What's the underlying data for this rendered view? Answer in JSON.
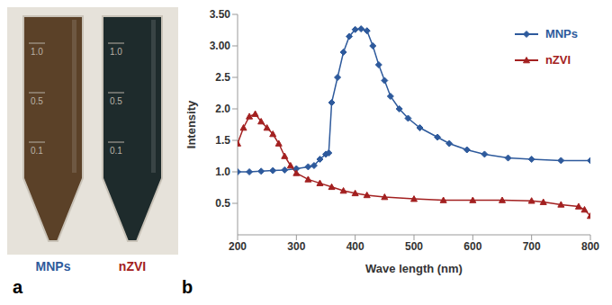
{
  "photo": {
    "panel_label": "a",
    "tubes": [
      {
        "name": "MNPs",
        "color": "#2e5a9c",
        "liquid": "#5b4128",
        "scale_marks": [
          "1.0",
          "0.5",
          "0.1"
        ]
      },
      {
        "name": "nZVI",
        "color": "#a32020",
        "liquid": "#1e2b2c",
        "scale_marks": [
          "1.0",
          "0.5",
          "0.1"
        ]
      }
    ]
  },
  "chart_data": {
    "type": "line",
    "panel_label": "b",
    "x_label": "Wave length (nm)",
    "y_label": "Intensity",
    "xlim": [
      200,
      800
    ],
    "xticks": [
      200,
      300,
      400,
      500,
      600,
      700,
      800
    ],
    "ylim": [
      0,
      3.5
    ],
    "yticks": [
      0.5,
      {
        "value": 1,
        "label": "1.0"
      },
      1.5,
      {
        "value": 2,
        "label": "2.0"
      },
      2.5,
      {
        "value": 3,
        "label": "3.00"
      },
      {
        "value": 3.5,
        "label": "3.50"
      }
    ],
    "grid": false,
    "legend": "top right",
    "series": [
      {
        "name": "MNPs",
        "color": "#2e5a9c",
        "marker": "diamond",
        "x": [
          200,
          220,
          240,
          260,
          280,
          300,
          320,
          330,
          340,
          350,
          355,
          360,
          370,
          380,
          390,
          400,
          410,
          420,
          430,
          440,
          450,
          460,
          475,
          490,
          510,
          540,
          560,
          590,
          620,
          660,
          700,
          750,
          800
        ],
        "values": [
          1.0,
          1.0,
          1.01,
          1.02,
          1.03,
          1.05,
          1.08,
          1.1,
          1.2,
          1.28,
          1.3,
          2.1,
          2.5,
          2.9,
          3.15,
          3.26,
          3.27,
          3.24,
          3.0,
          2.7,
          2.45,
          2.2,
          2.0,
          1.85,
          1.7,
          1.55,
          1.45,
          1.35,
          1.28,
          1.22,
          1.2,
          1.18,
          1.18
        ]
      },
      {
        "name": "nZVI",
        "color": "#a32020",
        "marker": "triangle",
        "x": [
          200,
          210,
          220,
          230,
          240,
          250,
          260,
          270,
          280,
          290,
          300,
          320,
          340,
          360,
          380,
          400,
          420,
          450,
          500,
          550,
          600,
          650,
          700,
          720,
          750,
          780,
          790,
          800
        ],
        "values": [
          1.45,
          1.7,
          1.88,
          1.92,
          1.8,
          1.7,
          1.6,
          1.45,
          1.25,
          1.1,
          0.98,
          0.88,
          0.82,
          0.76,
          0.7,
          0.66,
          0.63,
          0.6,
          0.57,
          0.55,
          0.55,
          0.55,
          0.54,
          0.52,
          0.48,
          0.45,
          0.4,
          0.3
        ]
      }
    ]
  }
}
